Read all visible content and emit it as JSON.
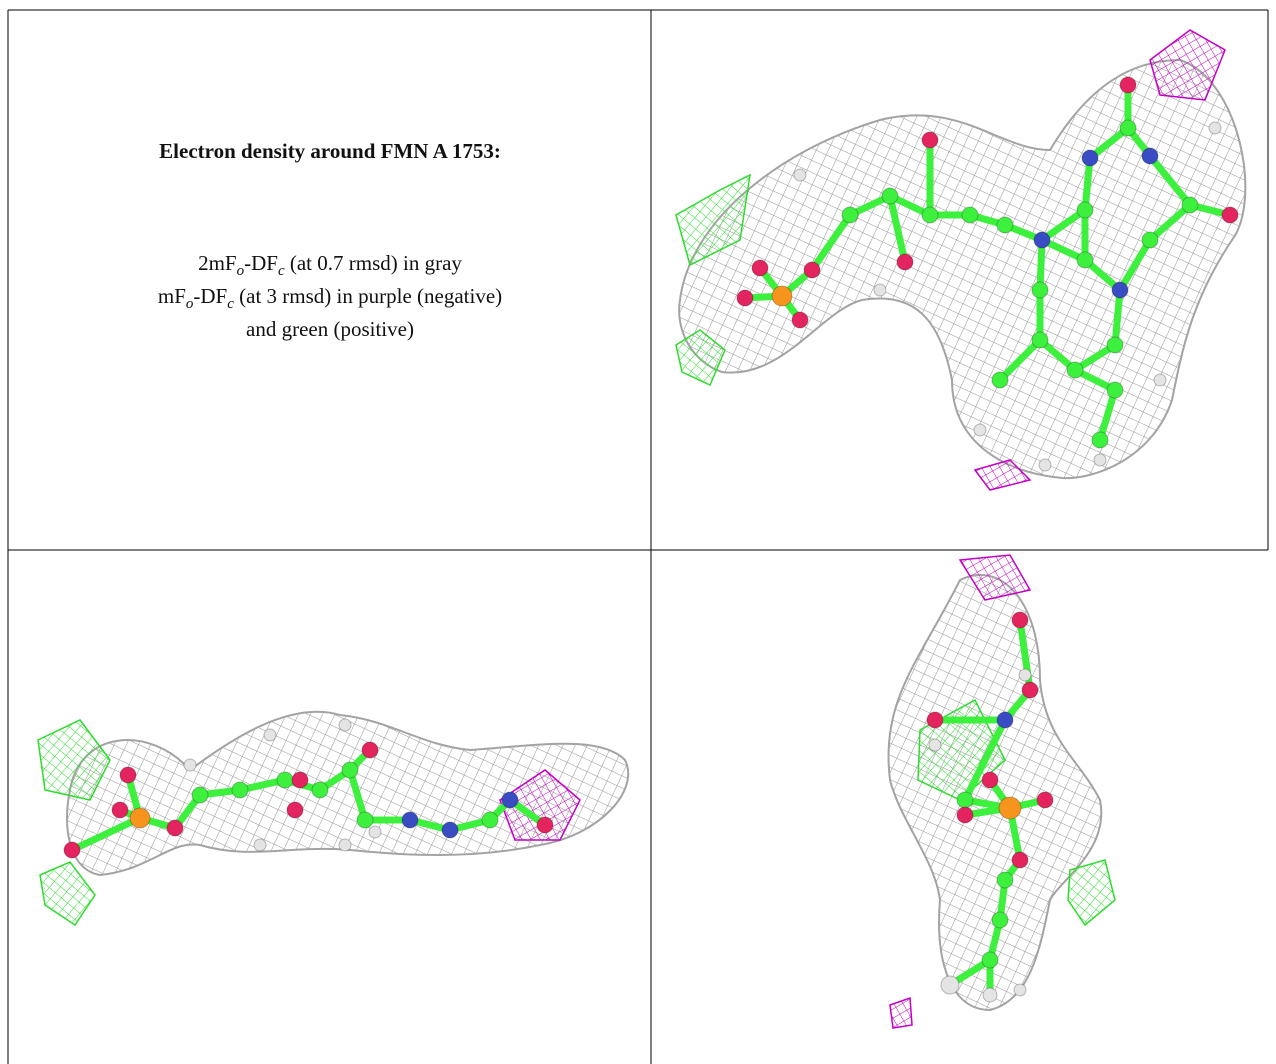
{
  "text_cell": {
    "title": "Electron density around FMN A 1753:",
    "lines": [
      [
        "2mF",
        "o",
        "-DF",
        "c",
        " (at 0.7 rmsd) in gray"
      ],
      [
        "mF",
        "o",
        "-DF",
        "c",
        " (at 3 rmsd) in purple (negative)"
      ],
      [
        "and green (positive)"
      ]
    ]
  }
}
